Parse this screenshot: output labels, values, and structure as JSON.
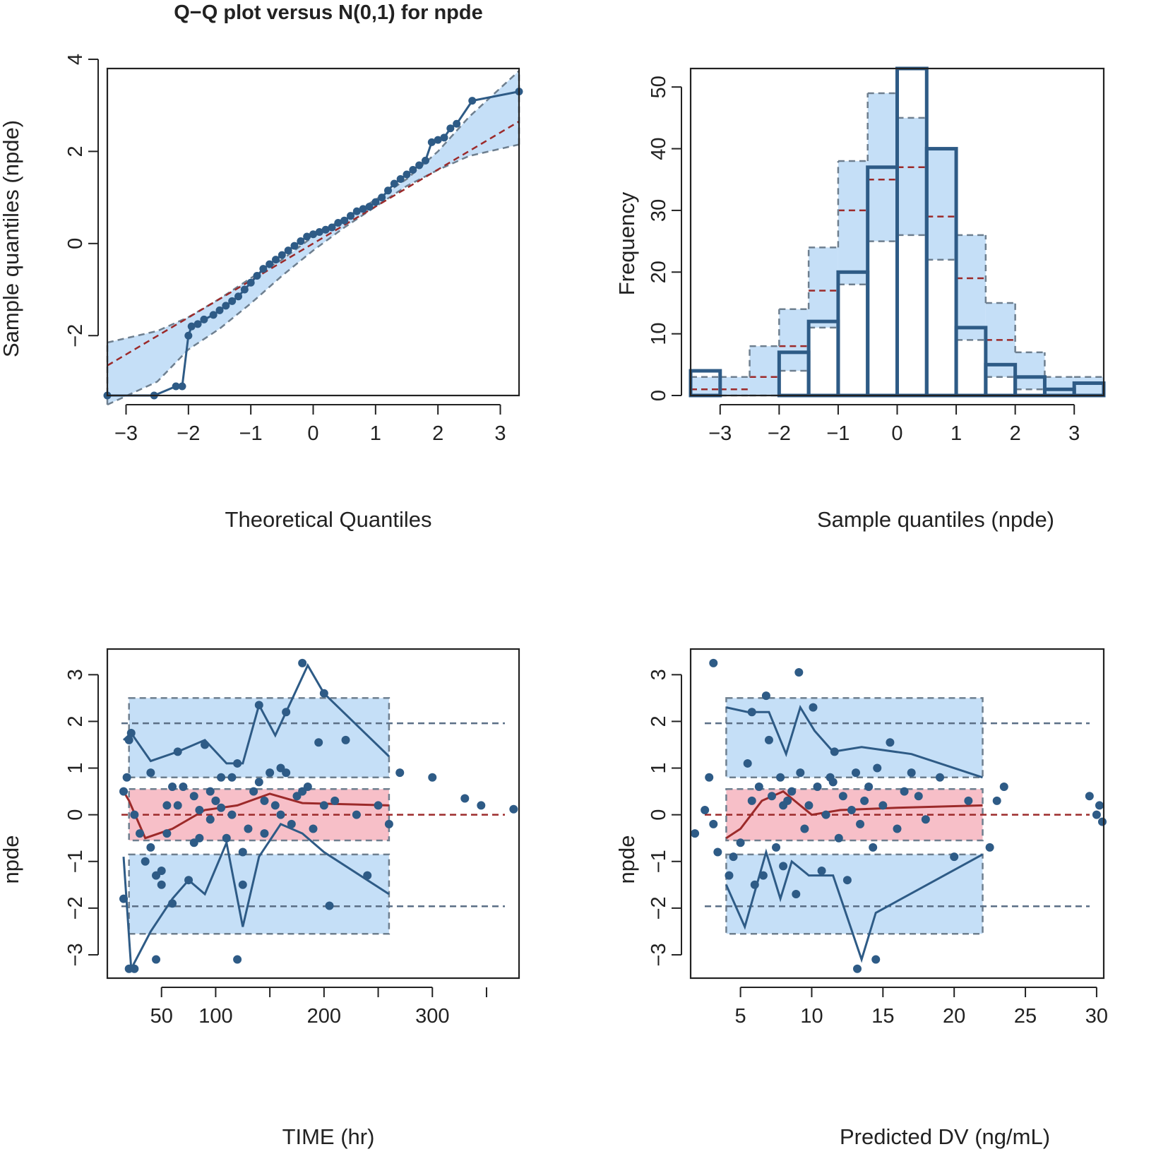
{
  "chart_data": [
    {
      "id": "qq",
      "type": "scatter",
      "title": "Q−Q plot versus N(0,1) for  npde",
      "xlabel": "Theoretical Quantiles",
      "ylabel": "Sample quantiles (npde)",
      "xlim": [
        -3.3,
        3.3
      ],
      "ylim": [
        -3.3,
        3.8
      ],
      "xticks": [
        -3,
        -2,
        -1,
        0,
        1,
        2,
        3
      ],
      "yticks": [
        -2,
        0,
        2,
        4
      ],
      "colors": {
        "band": "#c5dff7",
        "band_edge": "#6e7f8f",
        "median": "#9c2a2a",
        "points": "#2e5b86"
      },
      "band": {
        "x": [
          -3.3,
          -2.5,
          -2.0,
          -1.5,
          -1.0,
          -0.5,
          0,
          0.5,
          1.0,
          1.5,
          2.0,
          2.5,
          3.3
        ],
        "lower": [
          -3.5,
          -3.0,
          -2.3,
          -1.85,
          -1.3,
          -0.7,
          -0.15,
          0.35,
          0.8,
          1.25,
          1.6,
          1.9,
          2.15
        ],
        "upper": [
          -2.15,
          -1.9,
          -1.6,
          -1.2,
          -0.75,
          -0.35,
          0.15,
          0.55,
          0.95,
          1.4,
          2.0,
          2.75,
          3.75
        ]
      },
      "median_line": {
        "x": [
          -3.3,
          3.3
        ],
        "y": [
          -2.65,
          2.65
        ]
      },
      "points": {
        "x": [
          -3.3,
          -2.55,
          -2.2,
          -2.1,
          -2.0,
          -1.95,
          -1.85,
          -1.75,
          -1.6,
          -1.5,
          -1.4,
          -1.3,
          -1.2,
          -1.1,
          -1.0,
          -0.9,
          -0.8,
          -0.7,
          -0.6,
          -0.5,
          -0.4,
          -0.3,
          -0.2,
          -0.1,
          0,
          0.1,
          0.2,
          0.3,
          0.4,
          0.5,
          0.6,
          0.7,
          0.8,
          0.9,
          1.0,
          1.1,
          1.2,
          1.3,
          1.4,
          1.5,
          1.6,
          1.7,
          1.8,
          1.9,
          2.0,
          2.1,
          2.2,
          2.3,
          2.55,
          3.3
        ],
        "y": [
          -3.3,
          -3.3,
          -3.1,
          -3.1,
          -2.0,
          -1.8,
          -1.75,
          -1.65,
          -1.55,
          -1.45,
          -1.35,
          -1.25,
          -1.15,
          -1.0,
          -0.85,
          -0.7,
          -0.55,
          -0.45,
          -0.35,
          -0.25,
          -0.15,
          -0.05,
          0.05,
          0.15,
          0.2,
          0.25,
          0.3,
          0.35,
          0.45,
          0.5,
          0.6,
          0.7,
          0.75,
          0.8,
          0.9,
          1.0,
          1.15,
          1.3,
          1.4,
          1.5,
          1.6,
          1.7,
          1.8,
          2.2,
          2.25,
          2.3,
          2.5,
          2.6,
          3.1,
          3.3
        ]
      }
    },
    {
      "id": "hist",
      "type": "bar",
      "title": "",
      "xlabel": "Sample quantiles (npde)",
      "ylabel": "Frequency",
      "xlim": [
        -3.5,
        3.5
      ],
      "ylim": [
        0,
        53
      ],
      "xticks": [
        -3,
        -2,
        -1,
        0,
        1,
        2,
        3
      ],
      "yticks": [
        0,
        10,
        20,
        30,
        40,
        50
      ],
      "bin_edges": [
        -3.5,
        -3.0,
        -2.5,
        -2.0,
        -1.5,
        -1.0,
        -0.5,
        0.0,
        0.5,
        1.0,
        1.5,
        2.0,
        2.5,
        3.0,
        3.5
      ],
      "counts": [
        4,
        0,
        0,
        7,
        12,
        20,
        37,
        53,
        40,
        11,
        5,
        3,
        1,
        2
      ],
      "pi_lower": [
        0,
        0,
        0,
        4,
        11,
        18,
        25,
        26,
        22,
        9,
        3,
        1,
        0,
        0
      ],
      "pi_median": [
        1,
        1,
        3,
        8,
        17,
        30,
        35,
        37,
        29,
        19,
        9,
        3,
        1,
        0
      ],
      "pi_upper": [
        3,
        3,
        8,
        14,
        24,
        38,
        49,
        45,
        40,
        26,
        15,
        7,
        3,
        3
      ]
    },
    {
      "id": "time",
      "type": "scatter",
      "title": "",
      "xlabel": "TIME (hr)",
      "ylabel": "npde",
      "xlim": [
        0,
        380
      ],
      "ylim": [
        -3.5,
        3.55
      ],
      "xticks": [
        50,
        100,
        200,
        300
      ],
      "minor_xticks": [
        150,
        250,
        350
      ],
      "yticks": [
        -3,
        -2,
        -1,
        0,
        1,
        2,
        3
      ],
      "ref_lines": [
        -1.96,
        0,
        1.96
      ],
      "bands": [
        {
          "x0": 20,
          "x1": 260,
          "y0": 0.8,
          "y1": 2.5,
          "kind": "outer"
        },
        {
          "x0": 20,
          "x1": 260,
          "y0": -2.55,
          "y1": -0.85,
          "kind": "outer"
        },
        {
          "x0": 20,
          "x1": 260,
          "y0": -0.55,
          "y1": 0.55,
          "kind": "median"
        }
      ],
      "upper_line": {
        "x": [
          15,
          22,
          40,
          65,
          90,
          110,
          125,
          140,
          155,
          170,
          185,
          200,
          260
        ],
        "y": [
          1.6,
          1.75,
          1.15,
          1.35,
          1.6,
          1.1,
          1.1,
          2.35,
          1.7,
          2.45,
          3.2,
          2.6,
          1.25
        ]
      },
      "median_line": {
        "x": [
          15,
          20,
          35,
          60,
          90,
          120,
          150,
          180,
          260
        ],
        "y": [
          0.5,
          0.3,
          -0.5,
          -0.3,
          0.1,
          0.2,
          0.45,
          0.25,
          0.2
        ]
      },
      "lower_line": {
        "x": [
          15,
          22,
          40,
          60,
          75,
          90,
          110,
          125,
          140,
          160,
          180,
          200,
          260
        ],
        "y": [
          -0.9,
          -3.3,
          -2.5,
          -1.8,
          -1.4,
          -1.7,
          -0.6,
          -2.4,
          -0.9,
          -0.2,
          -0.4,
          -0.8,
          -1.7
        ]
      },
      "points": {
        "x": [
          15,
          18,
          20,
          22,
          25,
          30,
          35,
          40,
          45,
          50,
          55,
          60,
          65,
          70,
          75,
          80,
          85,
          90,
          95,
          100,
          105,
          110,
          115,
          120,
          125,
          130,
          135,
          140,
          145,
          150,
          155,
          160,
          165,
          170,
          175,
          180,
          185,
          190,
          200,
          205,
          210,
          220,
          230,
          240,
          250,
          260,
          270,
          300,
          330,
          345,
          375,
          15,
          20,
          25,
          40,
          60,
          80,
          100,
          120,
          140,
          160,
          180,
          200,
          45,
          50,
          55,
          65,
          85,
          95,
          105,
          115,
          125,
          145,
          165,
          195
        ],
        "y": [
          -1.8,
          0.8,
          -3.3,
          1.75,
          -3.3,
          -0.4,
          -1.0,
          -0.7,
          -1.3,
          -1.5,
          -0.4,
          -1.9,
          0.2,
          0.6,
          -1.4,
          0.4,
          0.1,
          1.5,
          -0.1,
          0.3,
          0.8,
          -0.5,
          0.0,
          1.1,
          -1.5,
          -0.3,
          0.5,
          2.35,
          -0.4,
          0.9,
          0.2,
          0.0,
          2.2,
          -0.2,
          0.4,
          3.25,
          0.6,
          -0.3,
          2.6,
          -1.95,
          0.3,
          1.6,
          0.0,
          -1.3,
          0.2,
          -0.2,
          0.9,
          0.8,
          0.35,
          0.2,
          0.12,
          0.5,
          1.6,
          0.0,
          0.9,
          0.6,
          -0.6,
          0.3,
          -3.1,
          0.7,
          1.0,
          0.5,
          0.2,
          -3.1,
          -1.2,
          0.2,
          1.35,
          -0.5,
          0.5,
          0.15,
          0.8,
          -0.8,
          0.3,
          0.9,
          1.55
        ]
      }
    },
    {
      "id": "pred",
      "type": "scatter",
      "title": "",
      "xlabel": "Predicted DV (ng/mL)",
      "ylabel": "npde",
      "xlim": [
        1.5,
        30.5
      ],
      "ylim": [
        -3.5,
        3.55
      ],
      "xticks": [
        5,
        10,
        15,
        20,
        25,
        30
      ],
      "yticks": [
        -3,
        -2,
        -1,
        0,
        1,
        2,
        3
      ],
      "ref_lines": [
        -1.96,
        0,
        1.96
      ],
      "bands": [
        {
          "x0": 4.0,
          "x1": 22.0,
          "y0": 0.8,
          "y1": 2.5,
          "kind": "outer"
        },
        {
          "x0": 4.0,
          "x1": 22.0,
          "y0": -2.55,
          "y1": -0.85,
          "kind": "outer"
        },
        {
          "x0": 4.0,
          "x1": 22.0,
          "y0": -0.55,
          "y1": 0.55,
          "kind": "median"
        }
      ],
      "upper_line": {
        "x": [
          4.0,
          5.5,
          7.0,
          8.2,
          9.2,
          10.2,
          11.5,
          13.5,
          17,
          22
        ],
        "y": [
          2.3,
          2.2,
          2.2,
          1.3,
          2.3,
          1.8,
          1.35,
          1.45,
          1.3,
          0.8
        ]
      },
      "median_line": {
        "x": [
          4.0,
          5.0,
          6.5,
          8.0,
          10.0,
          12.0,
          16,
          22
        ],
        "y": [
          -0.5,
          -0.3,
          0.3,
          0.5,
          0.0,
          0.1,
          0.15,
          0.2
        ]
      },
      "lower_line": {
        "x": [
          4.0,
          5.3,
          6.8,
          7.8,
          8.6,
          9.8,
          11.5,
          13.5,
          14.5,
          22
        ],
        "y": [
          -1.5,
          -2.4,
          -0.8,
          -1.8,
          -1.0,
          -1.3,
          -1.3,
          -3.1,
          -2.1,
          -0.85
        ]
      },
      "points": {
        "x": [
          1.8,
          2.5,
          2.8,
          3.1,
          3.4,
          4.2,
          4.5,
          5.0,
          5.5,
          5.8,
          6.0,
          6.3,
          6.6,
          6.8,
          7.0,
          7.2,
          7.5,
          7.8,
          8.0,
          8.3,
          8.6,
          8.9,
          9.2,
          9.5,
          9.8,
          10.1,
          10.4,
          10.7,
          11.0,
          11.3,
          11.6,
          11.9,
          12.2,
          12.5,
          12.8,
          13.1,
          13.4,
          13.7,
          14.0,
          14.3,
          14.6,
          15.0,
          15.5,
          16.0,
          16.5,
          17.0,
          17.5,
          18.0,
          19.0,
          20.0,
          21.0,
          22.5,
          23.0,
          23.5,
          29.5,
          30.0,
          30.2,
          30.4,
          3.1,
          5.8,
          9.1,
          13.2,
          14.5,
          8.0,
          11.5
        ],
        "y": [
          -0.4,
          0.1,
          0.8,
          -0.2,
          -0.8,
          -1.3,
          -0.9,
          -0.6,
          1.1,
          0.3,
          -1.5,
          0.6,
          -1.3,
          2.55,
          1.6,
          0.4,
          -0.7,
          0.8,
          -1.1,
          0.3,
          0.5,
          -1.7,
          0.9,
          -0.3,
          0.2,
          2.3,
          0.6,
          -1.2,
          0.0,
          0.8,
          1.35,
          -0.5,
          0.4,
          -1.4,
          0.1,
          0.9,
          -0.2,
          0.3,
          0.6,
          -0.7,
          1.0,
          0.2,
          1.55,
          -0.3,
          0.5,
          0.9,
          0.4,
          -0.1,
          0.8,
          -0.9,
          0.3,
          -0.7,
          0.3,
          0.6,
          0.4,
          0.0,
          0.2,
          -0.15,
          3.25,
          2.2,
          3.05,
          -3.3,
          -3.1,
          0.2,
          0.7
        ]
      }
    }
  ]
}
